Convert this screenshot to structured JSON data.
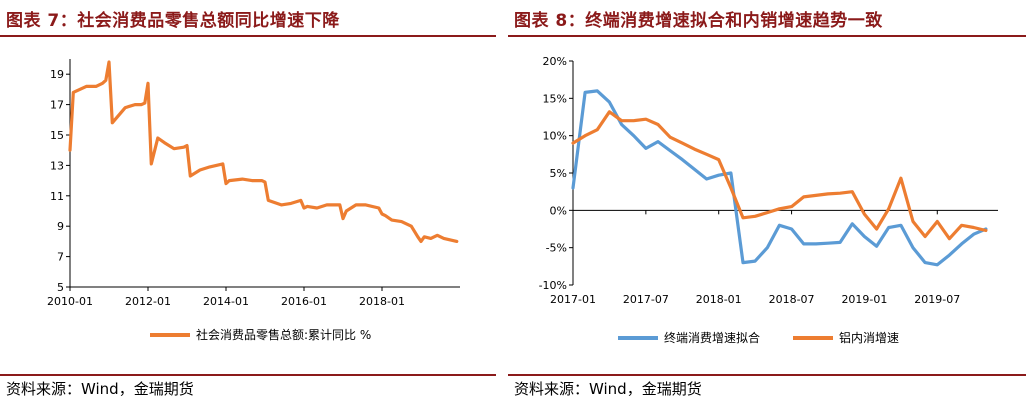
{
  "charts": [
    {
      "title": "图表 7：社会消费品零售总额同比增速下降",
      "source": "资料来源：Wind，金瑞期货",
      "accent_color": "#8b1a1a"
    },
    {
      "title": "图表 8：终端消费增速拟合和内销增速趋势一致",
      "source": "资料来源：Wind，金瑞期货",
      "accent_color": "#8b1a1a"
    }
  ],
  "chart_data": [
    {
      "type": "line",
      "title": "",
      "xlabel": "",
      "ylabel": "",
      "x_ticks": [
        "2010-01",
        "2012-01",
        "2014-01",
        "2016-01",
        "2018-01"
      ],
      "y_ticks": [
        "19",
        "17",
        "15",
        "13",
        "11",
        "9",
        "7",
        "5"
      ],
      "ylim": [
        5,
        20
      ],
      "grid": false,
      "legend_position": "bottom",
      "series": [
        {
          "name": "社会消费品零售总额:累计同比 %",
          "color": "#ed7d31",
          "x": [
            "2010-01",
            "2010-02",
            "2010-03",
            "2010-06",
            "2010-09",
            "2010-11",
            "2010-12",
            "2011-01",
            "2011-02",
            "2011-04",
            "2011-06",
            "2011-09",
            "2011-11",
            "2011-12",
            "2012-01",
            "2012-02",
            "2012-04",
            "2012-06",
            "2012-09",
            "2012-12",
            "2013-01",
            "2013-02",
            "2013-05",
            "2013-08",
            "2013-12",
            "2014-01",
            "2014-02",
            "2014-06",
            "2014-09",
            "2014-12",
            "2015-01",
            "2015-02",
            "2015-06",
            "2015-09",
            "2015-12",
            "2016-01",
            "2016-02",
            "2016-05",
            "2016-08",
            "2016-12",
            "2017-01",
            "2017-02",
            "2017-05",
            "2017-08",
            "2017-12",
            "2018-01",
            "2018-02",
            "2018-04",
            "2018-07",
            "2018-10",
            "2018-12",
            "2019-01",
            "2019-02",
            "2019-04",
            "2019-06",
            "2019-08",
            "2019-10",
            "2019-12"
          ],
          "values": [
            14.0,
            17.8,
            17.9,
            18.2,
            18.2,
            18.4,
            18.6,
            19.8,
            15.8,
            16.3,
            16.8,
            17.0,
            17.0,
            17.1,
            18.4,
            13.1,
            14.8,
            14.5,
            14.1,
            14.2,
            14.3,
            12.3,
            12.7,
            12.9,
            13.1,
            11.8,
            12.0,
            12.1,
            12.0,
            12.0,
            11.9,
            10.7,
            10.4,
            10.5,
            10.7,
            10.2,
            10.3,
            10.2,
            10.4,
            10.4,
            9.5,
            10.0,
            10.4,
            10.4,
            10.2,
            9.8,
            9.7,
            9.4,
            9.3,
            9.0,
            8.3,
            8.0,
            8.3,
            8.2,
            8.4,
            8.2,
            8.1,
            8.0
          ]
        }
      ]
    },
    {
      "type": "line",
      "title": "",
      "xlabel": "",
      "ylabel": "",
      "x_ticks": [
        "2017-01",
        "2017-07",
        "2018-01",
        "2018-07",
        "2019-01",
        "2019-07"
      ],
      "y_ticks": [
        "20%",
        "15%",
        "10%",
        "5%",
        "0%",
        "-5%",
        "-10%"
      ],
      "ylim": [
        -10,
        20
      ],
      "grid": false,
      "legend_position": "bottom",
      "series": [
        {
          "name": "终端消费增速拟合",
          "color": "#5b9bd5",
          "x": [
            "2017-01",
            "2017-02",
            "2017-03",
            "2017-04",
            "2017-05",
            "2017-06",
            "2017-07",
            "2017-08",
            "2017-09",
            "2017-10",
            "2017-11",
            "2017-12",
            "2018-01",
            "2018-02",
            "2018-03",
            "2018-04",
            "2018-05",
            "2018-06",
            "2018-07",
            "2018-08",
            "2018-09",
            "2018-10",
            "2018-11",
            "2018-12",
            "2019-01",
            "2019-02",
            "2019-03",
            "2019-04",
            "2019-05",
            "2019-06",
            "2019-07",
            "2019-08",
            "2019-09",
            "2019-10",
            "2019-11"
          ],
          "values": [
            3.0,
            15.8,
            16.0,
            14.5,
            11.5,
            10.0,
            8.3,
            9.2,
            8.0,
            6.8,
            5.5,
            4.2,
            4.7,
            5.0,
            -7.0,
            -6.8,
            -5.0,
            -2.0,
            -2.5,
            -4.5,
            -4.5,
            -4.4,
            -4.3,
            -1.8,
            -3.5,
            -4.8,
            -2.3,
            -2.0,
            -5.0,
            -7.0,
            -7.3,
            -6.0,
            -4.5,
            -3.2,
            -2.5
          ]
        },
        {
          "name": "铝内消增速",
          "color": "#ed7d31",
          "x": [
            "2017-01",
            "2017-02",
            "2017-03",
            "2017-04",
            "2017-05",
            "2017-06",
            "2017-07",
            "2017-08",
            "2017-09",
            "2017-10",
            "2017-11",
            "2017-12",
            "2018-01",
            "2018-02",
            "2018-03",
            "2018-04",
            "2018-05",
            "2018-06",
            "2018-07",
            "2018-08",
            "2018-09",
            "2018-10",
            "2018-11",
            "2018-12",
            "2019-01",
            "2019-02",
            "2019-03",
            "2019-04",
            "2019-05",
            "2019-06",
            "2019-07",
            "2019-08",
            "2019-09",
            "2019-10",
            "2019-11"
          ],
          "values": [
            9.0,
            10.0,
            10.8,
            13.2,
            12.0,
            12.0,
            12.2,
            11.5,
            9.8,
            9.0,
            8.2,
            7.5,
            6.8,
            3.0,
            -1.0,
            -0.8,
            -0.3,
            0.2,
            0.5,
            1.8,
            2.0,
            2.2,
            2.3,
            2.5,
            -0.5,
            -2.5,
            0.2,
            4.3,
            -1.5,
            -3.5,
            -1.5,
            -3.8,
            -2.0,
            -2.3,
            -2.7
          ]
        }
      ]
    }
  ]
}
